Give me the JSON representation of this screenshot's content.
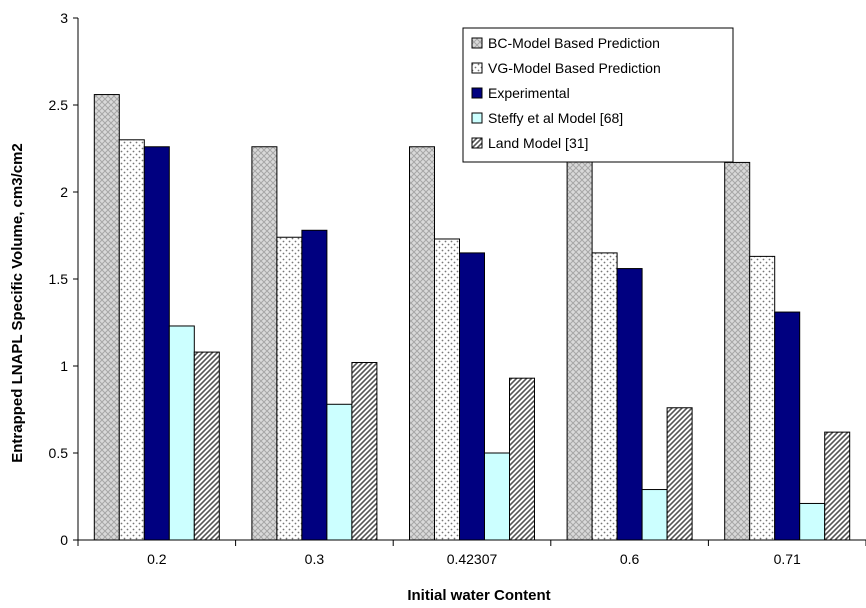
{
  "chart_data": {
    "type": "bar",
    "title": "",
    "xlabel": "Initial water Content",
    "ylabel": "Entrapped LNAPL Specific Volume, cm3/cm2",
    "categories": [
      "0.2",
      "0.3",
      "0.42307",
      "0.6",
      "0.71"
    ],
    "ylim": [
      0,
      3
    ],
    "yticks": [
      "0",
      "0.5",
      "1",
      "1.5",
      "2",
      "2.5",
      "3"
    ],
    "grid": false,
    "legend_position": "top-right",
    "series": [
      {
        "name": "BC-Model Based Prediction",
        "values": [
          2.56,
          2.26,
          2.26,
          2.2,
          2.17
        ],
        "fill": "#d6d6d6",
        "pattern": "crosshatch"
      },
      {
        "name": "VG-Model Based Prediction",
        "values": [
          2.3,
          1.74,
          1.73,
          1.65,
          1.63
        ],
        "fill": "#ffffff",
        "pattern": "dots"
      },
      {
        "name": "Experimental",
        "values": [
          2.26,
          1.78,
          1.65,
          1.56,
          1.31
        ],
        "fill": "#000080",
        "pattern": "solid"
      },
      {
        "name": "Steffy et al Model [68]",
        "values": [
          1.23,
          0.78,
          0.5,
          0.29,
          0.21
        ],
        "fill": "#ccffff",
        "pattern": "solid"
      },
      {
        "name": "Land Model [31]",
        "values": [
          1.08,
          1.02,
          0.93,
          0.76,
          0.62
        ],
        "fill": "#ffffff",
        "pattern": "diagonal"
      }
    ]
  }
}
